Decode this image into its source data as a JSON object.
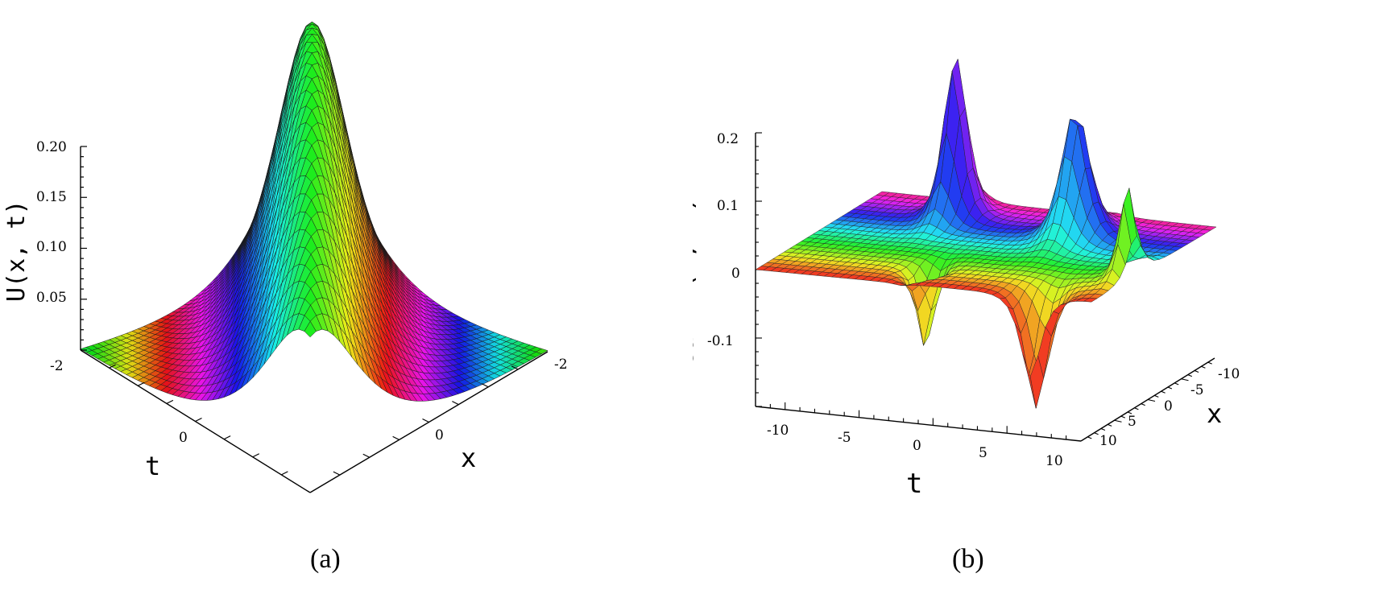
{
  "panels": [
    {
      "caption": "(a)",
      "axis_label_z": "U(x, t)",
      "axis_label_x": "x",
      "axis_label_t": "t"
    },
    {
      "caption": "(b)",
      "axis_label_z": "Real v(x, t)",
      "axis_label_x": "x",
      "axis_label_t": "t"
    }
  ],
  "chart_data": [
    {
      "type": "surface",
      "title": "",
      "zlabel": "U(x, t)",
      "xlabel": "x",
      "tlabel": "t",
      "x_ticks": [
        "-2",
        "0"
      ],
      "t_ticks": [
        "-2",
        "0"
      ],
      "z_ticks": [
        0.05,
        0.1,
        0.15,
        0.2
      ],
      "z_tick_labels": [
        "0.05",
        "0.10",
        "0.15",
        "0.20"
      ],
      "xlim": [
        -2,
        2
      ],
      "tlim": [
        -2,
        2
      ],
      "zlim": [
        0,
        0.26
      ],
      "description_values": {
        "peak_value": 0.26,
        "shape": "single bright soliton peak along the line x = t"
      },
      "colormap": "rainbow"
    },
    {
      "type": "surface",
      "title": "",
      "zlabel": "Real v(x, t)",
      "xlabel": "x",
      "tlabel": "t",
      "t_ticks": [
        "-10",
        "-5",
        "0",
        "5",
        "10"
      ],
      "x_ticks": [
        "-10",
        "-5",
        "0",
        "5",
        "10"
      ],
      "z_ticks": [
        -0.1,
        0,
        0.1,
        0.2
      ],
      "z_tick_labels": [
        "-0.1",
        "0",
        "0.1",
        "0.2"
      ],
      "xlim": [
        -10,
        10
      ],
      "tlim": [
        -12,
        10
      ],
      "zlim": [
        -0.2,
        0.25
      ],
      "colormap": "rainbow"
    }
  ]
}
